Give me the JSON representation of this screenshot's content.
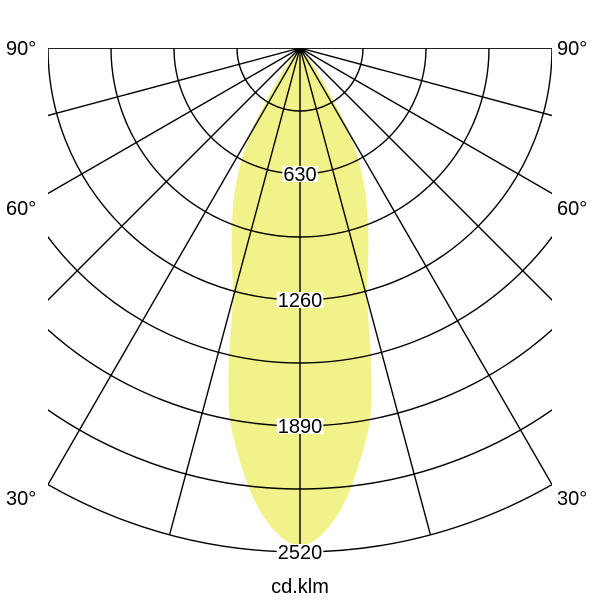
{
  "chart_data": {
    "type": "polar",
    "unit_label": "cd.klm",
    "radial_ticks": [
      630,
      1260,
      1890,
      2520
    ],
    "radial_gridlines": [
      315,
      630,
      945,
      1260,
      1575,
      1890,
      2205,
      2520
    ],
    "rlim": [
      0,
      2520
    ],
    "angle_labels": [
      "90°",
      "60°",
      "30°"
    ],
    "angle_gridlines_deg": [
      -90,
      -75,
      -60,
      -45,
      -30,
      -15,
      0,
      15,
      30,
      45,
      60,
      75,
      90
    ],
    "grid": true,
    "fill_color": "#f2f28a",
    "series": [
      {
        "angles_deg": [
          0,
          5,
          10,
          12.5,
          15,
          20,
          25,
          30,
          35,
          40,
          45
        ],
        "values": [
          2490,
          2320,
          1950,
          1650,
          1300,
          1000,
          760,
          500,
          200,
          50,
          0
        ],
        "symmetric": true
      }
    ]
  }
}
